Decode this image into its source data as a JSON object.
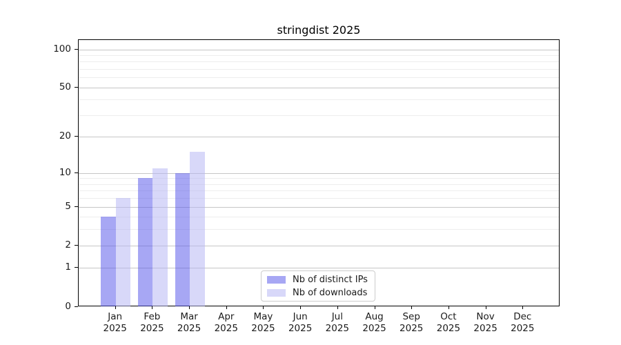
{
  "title": "stringdist 2025",
  "legend": {
    "items": [
      {
        "label": "Nb of distinct IPs",
        "color": "rgba(79,79,233,0.5)"
      },
      {
        "label": "Nb of downloads",
        "color": "rgba(177,177,243,0.5)"
      }
    ]
  },
  "chart_data": {
    "type": "bar",
    "title": "stringdist 2025",
    "categories": [
      "Jan 2025",
      "Feb 2025",
      "Mar 2025",
      "Apr 2025",
      "May 2025",
      "Jun 2025",
      "Jul 2025",
      "Aug 2025",
      "Sep 2025",
      "Oct 2025",
      "Nov 2025",
      "Dec 2025"
    ],
    "series": [
      {
        "name": "Nb of distinct IPs",
        "color": "rgba(79,79,233,0.5)",
        "values": [
          4,
          9,
          10,
          0,
          0,
          0,
          0,
          0,
          0,
          0,
          0,
          0
        ]
      },
      {
        "name": "Nb of downloads",
        "color": "rgba(177,177,243,0.5)",
        "values": [
          6,
          11,
          15,
          0,
          0,
          0,
          0,
          0,
          0,
          0,
          0,
          0
        ]
      }
    ],
    "xlabel": "",
    "ylabel": "",
    "yscale": "log1p",
    "ylim": [
      0,
      118
    ],
    "yticks": [
      0,
      1,
      2,
      5,
      10,
      20,
      50,
      100
    ],
    "minor_yticks": [
      3,
      4,
      6,
      7,
      8,
      9,
      30,
      40,
      60,
      70,
      80,
      90
    ],
    "grid": "horizontal",
    "legend_position": "lower center",
    "colors": {
      "major_grid": "#c6c6c6",
      "minor_grid": "#ededed",
      "spine": "#000000",
      "dark_bar_on_white": "#a7a7f3",
      "light_bar_on_white": "#d8d8f9"
    }
  }
}
